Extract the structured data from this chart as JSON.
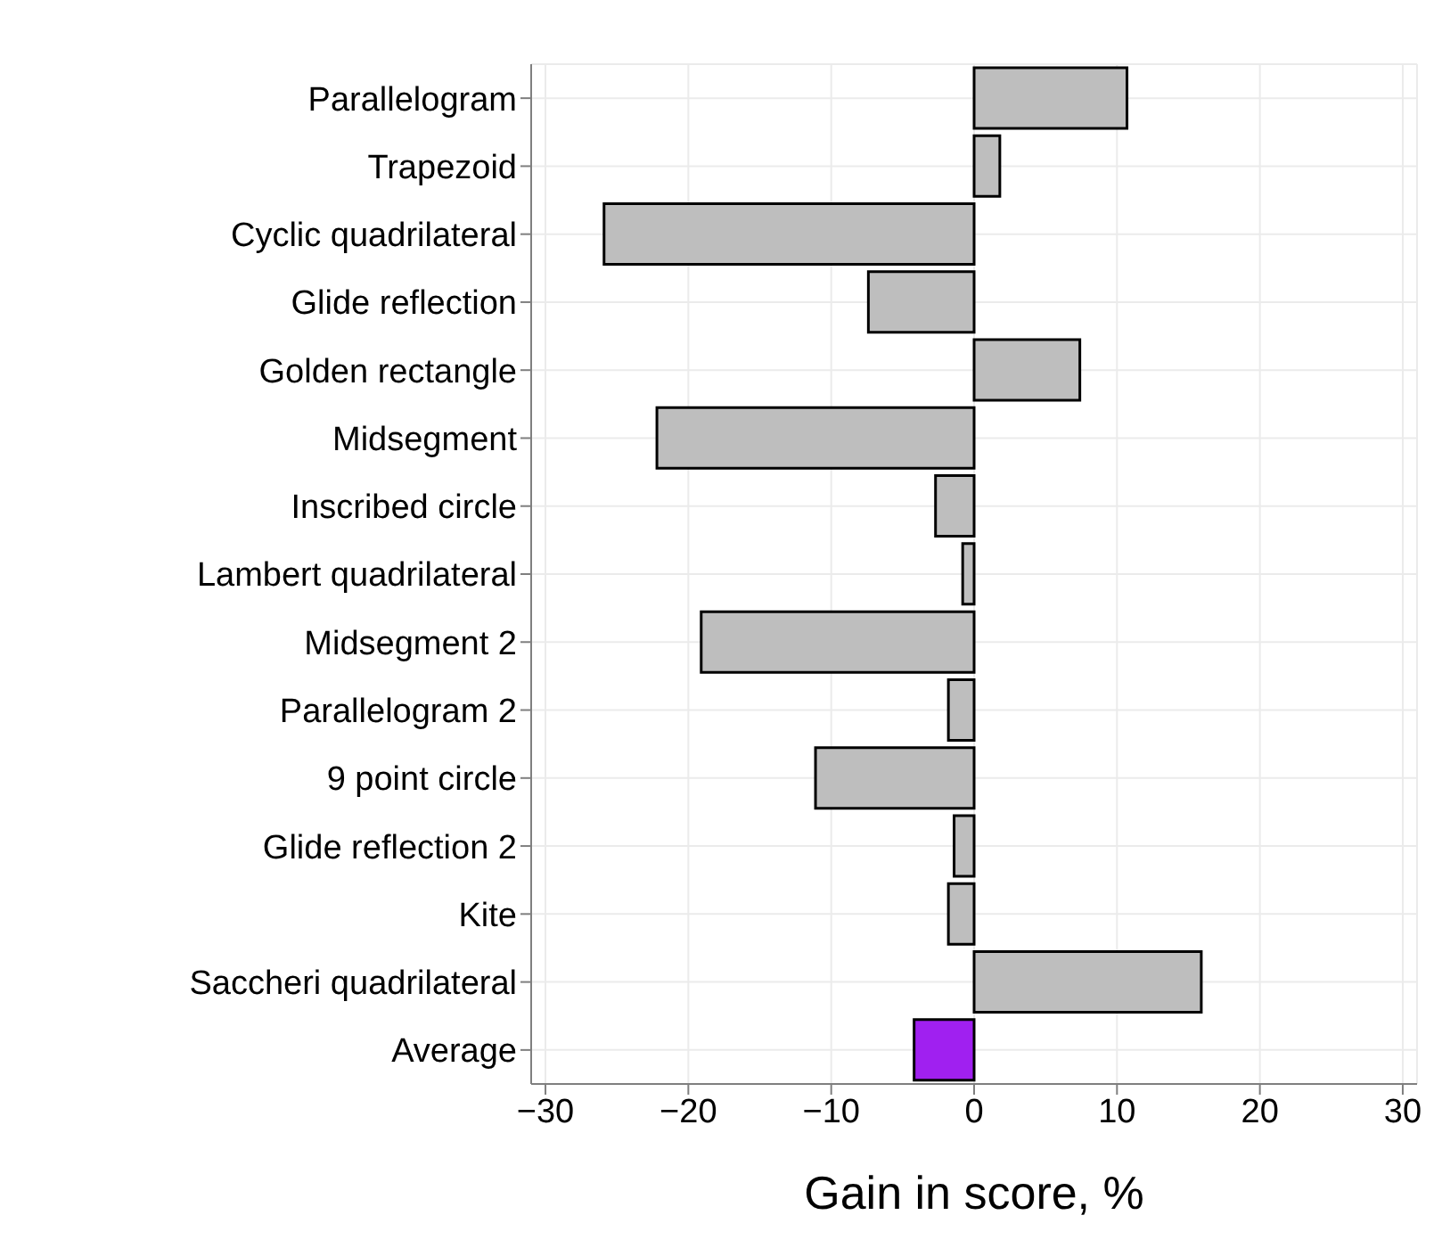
{
  "chart_data": {
    "type": "bar",
    "orientation": "horizontal",
    "xlabel": "Gain in score, %",
    "categories": [
      "Parallelogram",
      "Trapezoid",
      "Cyclic quadrilateral",
      "Glide reflection",
      "Golden rectangle",
      "Midsegment",
      "Inscribed circle",
      "Lambert quadrilateral",
      "Midsegment 2",
      "Parallelogram 2",
      "9 point circle",
      "Glide reflection 2",
      "Kite",
      "Saccheri quadrilateral",
      "Average"
    ],
    "values": [
      10.7,
      1.8,
      -25.9,
      -7.4,
      7.4,
      -22.2,
      -2.7,
      -0.8,
      -19.1,
      -1.8,
      -11.1,
      -1.4,
      -1.8,
      15.9,
      -4.2
    ],
    "colors": [
      "#bebebe",
      "#bebebe",
      "#bebebe",
      "#bebebe",
      "#bebebe",
      "#bebebe",
      "#bebebe",
      "#bebebe",
      "#bebebe",
      "#bebebe",
      "#bebebe",
      "#bebebe",
      "#bebebe",
      "#bebebe",
      "#a020f0"
    ],
    "xlim": [
      -31,
      31
    ],
    "xticks": [
      -30,
      -20,
      -10,
      0,
      10,
      20,
      30
    ],
    "grid": true
  }
}
